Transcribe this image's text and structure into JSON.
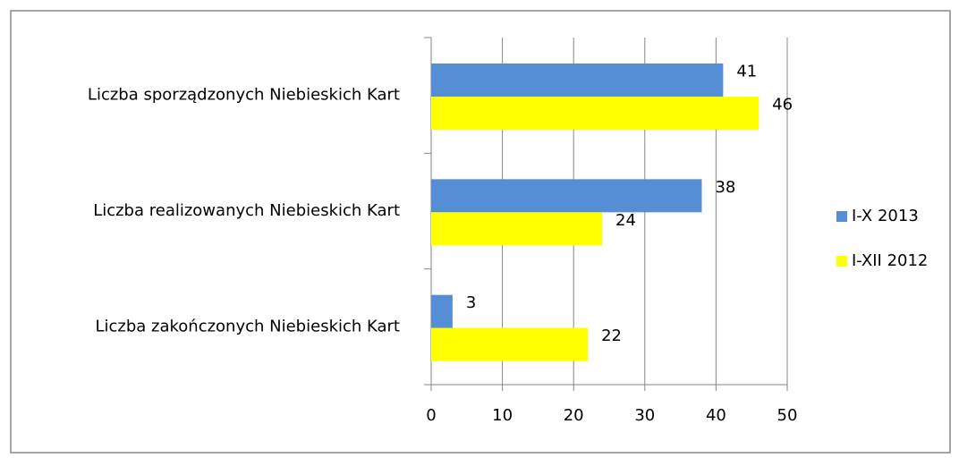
{
  "chart_data": {
    "type": "barh",
    "categories": [
      "Liczba sporządzonych Niebieskich Kart",
      "Liczba realizowanych Niebieskich Kart",
      "Liczba zakończonych Niebieskich Kart"
    ],
    "series": [
      {
        "name": "I-X 2013",
        "color": "#558ed5",
        "values": [
          41,
          38,
          3
        ]
      },
      {
        "name": "I-XII 2012",
        "color": "#ffff00",
        "values": [
          46,
          24,
          22
        ]
      }
    ],
    "xlim": [
      0,
      50
    ],
    "xticks": [
      0,
      10,
      20,
      30,
      40,
      50
    ],
    "grid": true,
    "legend": "right"
  }
}
